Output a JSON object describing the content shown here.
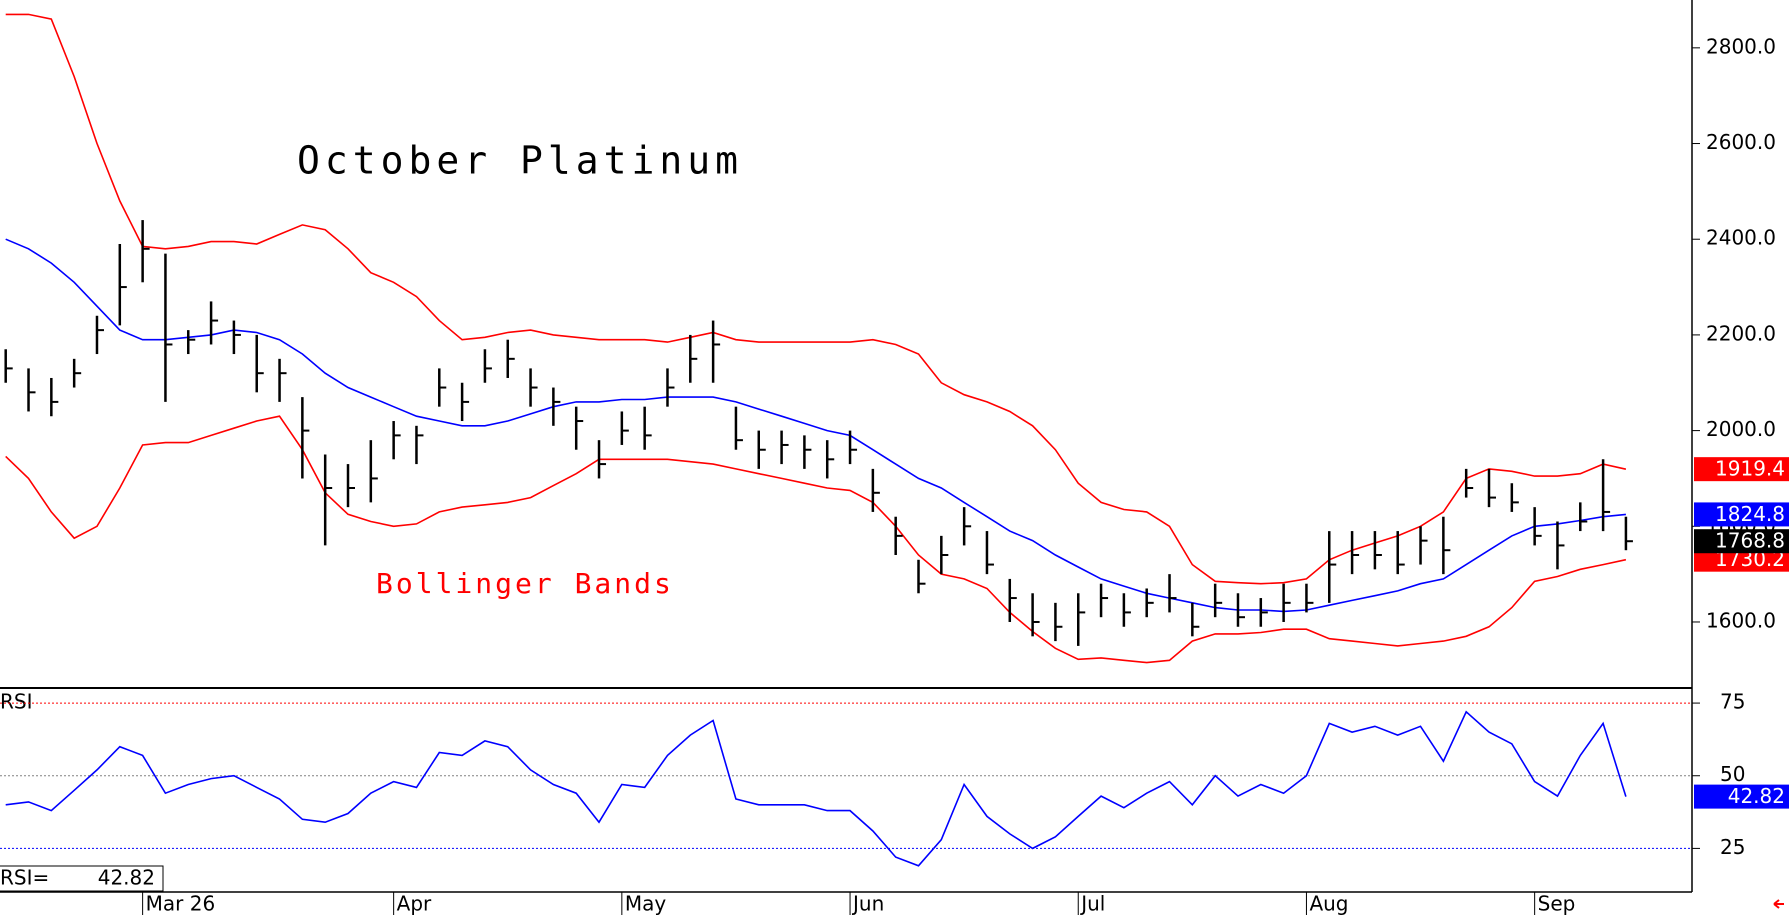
{
  "chart_data": [
    {
      "type": "ohlc",
      "title": "October Platinum",
      "categories": [
        null,
        null,
        null,
        null,
        null,
        null,
        "Mar 26",
        null,
        null,
        null,
        null,
        null,
        null,
        null,
        null,
        null,
        null,
        "Apr",
        null,
        null,
        null,
        null,
        null,
        null,
        null,
        null,
        null,
        "May",
        null,
        null,
        null,
        null,
        null,
        null,
        null,
        null,
        null,
        "Jun",
        null,
        null,
        null,
        null,
        null,
        null,
        null,
        null,
        null,
        "Jul",
        null,
        null,
        null,
        null,
        null,
        null,
        null,
        null,
        null,
        "Aug",
        null,
        null,
        null,
        null,
        null,
        null,
        null,
        null,
        null,
        "Sep",
        null,
        null,
        null,
        null
      ],
      "high": [
        2170,
        2130,
        2110,
        2150,
        2240,
        2390,
        2440,
        2370,
        2210,
        2270,
        2230,
        2200,
        2150,
        2070,
        1950,
        1930,
        1980,
        2020,
        2010,
        2130,
        2100,
        2170,
        2190,
        2130,
        2090,
        2050,
        1980,
        2040,
        2050,
        2130,
        2200,
        2230,
        2050,
        2000,
        2000,
        1990,
        1980,
        2000,
        1920,
        1820,
        1730,
        1780,
        1840,
        1790,
        1690,
        1660,
        1640,
        1660,
        1680,
        1660,
        1670,
        1700,
        1640,
        1680,
        1660,
        1650,
        1680,
        1680,
        1790,
        1790,
        1790,
        1790,
        1800,
        1820,
        1920,
        1920,
        1890,
        1840,
        1810,
        1850,
        1940,
        1820
      ],
      "low": [
        2100,
        2040,
        2030,
        2090,
        2160,
        2220,
        2310,
        2060,
        2160,
        2180,
        2160,
        2080,
        2060,
        1900,
        1760,
        1840,
        1850,
        1940,
        1930,
        2050,
        2020,
        2100,
        2110,
        2050,
        2010,
        1960,
        1900,
        1970,
        1960,
        2050,
        2100,
        2100,
        1960,
        1920,
        1930,
        1920,
        1900,
        1930,
        1830,
        1740,
        1660,
        1700,
        1760,
        1700,
        1600,
        1570,
        1560,
        1550,
        1610,
        1590,
        1610,
        1620,
        1570,
        1610,
        1590,
        1590,
        1600,
        1620,
        1640,
        1700,
        1710,
        1700,
        1720,
        1700,
        1860,
        1840,
        1830,
        1760,
        1710,
        1790,
        1790,
        1750
      ],
      "close": [
        2130,
        2080,
        2060,
        2120,
        2210,
        2300,
        2380,
        2180,
        2190,
        2230,
        2200,
        2120,
        2120,
        2000,
        1880,
        1880,
        1900,
        1990,
        1990,
        2090,
        2060,
        2130,
        2150,
        2090,
        2060,
        2020,
        1930,
        2000,
        1990,
        2090,
        2150,
        2180,
        1980,
        1960,
        1970,
        1960,
        1940,
        1960,
        1870,
        1780,
        1680,
        1740,
        1800,
        1720,
        1650,
        1600,
        1590,
        1620,
        1650,
        1620,
        1640,
        1650,
        1590,
        1640,
        1610,
        1620,
        1640,
        1640,
        1720,
        1740,
        1740,
        1720,
        1770,
        1750,
        1880,
        1860,
        1850,
        1780,
        1760,
        1810,
        1830,
        1768.8
      ],
      "color": "#000000",
      "bands": {
        "name": "Bollinger Bands",
        "color": "#ff0000",
        "upper": {
          "color": "#ff0000",
          "values": [
            2870,
            2870,
            2860,
            2740,
            2600,
            2480,
            2385,
            2380,
            2385,
            2395,
            2395,
            2390,
            2410,
            2430,
            2420,
            2380,
            2330,
            2310,
            2280,
            2230,
            2190,
            2195,
            2205,
            2210,
            2200,
            2195,
            2190,
            2190,
            2190,
            2185,
            2195,
            2205,
            2190,
            2185,
            2185,
            2185,
            2185,
            2185,
            2190,
            2180,
            2160,
            2100,
            2075,
            2060,
            2040,
            2010,
            1960,
            1890,
            1850,
            1835,
            1830,
            1800,
            1720,
            1685,
            1682,
            1680,
            1682,
            1690,
            1730,
            1750,
            1765,
            1780,
            1800,
            1830,
            1900,
            1920,
            1915,
            1905,
            1905,
            1910,
            1930,
            1919.4
          ]
        },
        "middle": {
          "color": "#0000ff",
          "values": [
            2400,
            2380,
            2350,
            2310,
            2260,
            2210,
            2190,
            2190,
            2195,
            2200,
            2210,
            2205,
            2190,
            2160,
            2120,
            2090,
            2070,
            2050,
            2030,
            2020,
            2010,
            2010,
            2020,
            2035,
            2050,
            2060,
            2060,
            2065,
            2065,
            2070,
            2070,
            2070,
            2060,
            2045,
            2030,
            2015,
            2000,
            1990,
            1960,
            1930,
            1900,
            1880,
            1850,
            1820,
            1790,
            1770,
            1740,
            1715,
            1690,
            1675,
            1660,
            1650,
            1640,
            1630,
            1625,
            1625,
            1622,
            1625,
            1635,
            1645,
            1655,
            1665,
            1680,
            1690,
            1720,
            1750,
            1780,
            1800,
            1805,
            1812,
            1820,
            1824.8
          ]
        },
        "lower": {
          "color": "#ff0000",
          "values": [
            1946,
            1900,
            1830,
            1775,
            1800,
            1880,
            1970,
            1975,
            1975,
            1990,
            2005,
            2020,
            2030,
            1960,
            1870,
            1825,
            1810,
            1800,
            1805,
            1830,
            1840,
            1845,
            1850,
            1860,
            1885,
            1910,
            1940,
            1940,
            1940,
            1940,
            1935,
            1930,
            1920,
            1910,
            1900,
            1890,
            1880,
            1875,
            1850,
            1800,
            1740,
            1700,
            1690,
            1670,
            1620,
            1580,
            1545,
            1522,
            1525,
            1520,
            1515,
            1520,
            1560,
            1575,
            1575,
            1578,
            1585,
            1585,
            1565,
            1560,
            1555,
            1550,
            1555,
            1560,
            1570,
            1590,
            1630,
            1685,
            1695,
            1710,
            1720,
            1730.2
          ]
        }
      },
      "ylim": [
        1462,
        2900
      ],
      "yticks": [
        {
          "value": 1600,
          "label": "1600.0"
        },
        {
          "value": 1800,
          "label": "1800.0"
        },
        {
          "value": 2000,
          "label": "2000.0"
        },
        {
          "value": 2200,
          "label": "2200.0"
        },
        {
          "value": 2400,
          "label": "2400.0"
        },
        {
          "value": 2600,
          "label": "2600.0"
        },
        {
          "value": 2800,
          "label": "2800.0"
        }
      ]
    },
    {
      "type": "line",
      "readout_label": "RSI=",
      "series": [
        {
          "name": "RSI",
          "color": "#0000ff",
          "values": [
            40,
            41,
            38,
            45,
            52,
            60,
            57,
            44,
            47,
            49,
            50,
            46,
            42,
            35,
            34,
            37,
            44,
            48,
            46,
            58,
            57,
            62,
            60,
            52,
            47,
            44,
            34,
            47,
            46,
            57,
            64,
            69,
            42,
            40,
            40,
            40,
            38,
            38,
            31,
            22,
            19,
            28,
            47,
            36,
            30,
            25,
            29,
            36,
            43,
            39,
            44,
            48,
            40,
            50,
            43,
            47,
            44,
            50,
            68,
            65,
            67,
            64,
            67,
            55,
            72,
            65,
            61,
            48,
            43,
            57,
            68,
            42.82
          ]
        }
      ],
      "ylim": [
        10,
        79.5
      ],
      "yticks": [
        25,
        50,
        75
      ],
      "grid_colors": [
        "#0000ff",
        "#808080",
        "#ff0000"
      ]
    }
  ]
}
